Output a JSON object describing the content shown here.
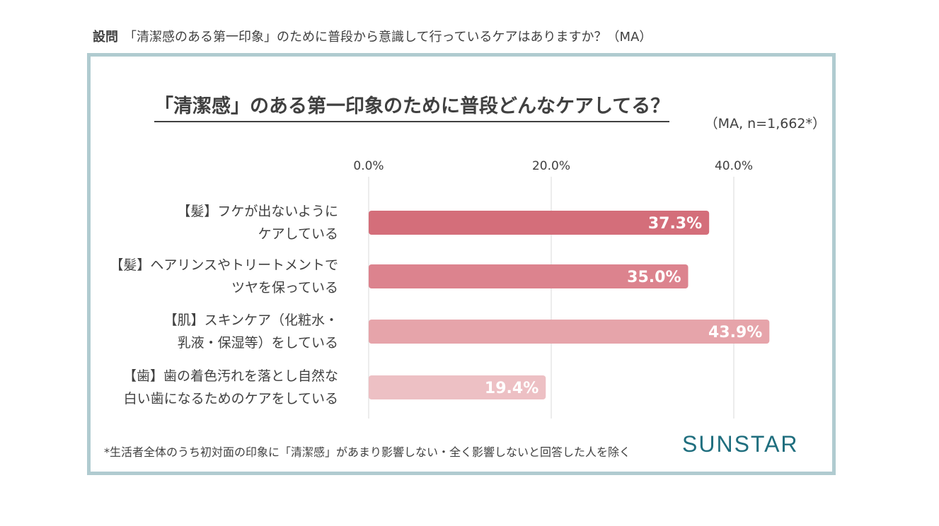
{
  "question": {
    "label": "設問",
    "text": "「清潔感のある第一印象」のために普段から意識して行っているケアはありますか？（MA）"
  },
  "chart_data": {
    "type": "bar",
    "orientation": "horizontal",
    "title": "「清潔感」のある第一印象のために普段どんなケアしてる？",
    "subtitle": "（MA, n=1,662*）",
    "categories": [
      [
        "【髪】フケが出ないように",
        "ケアしている"
      ],
      [
        "【髪】ヘアリンスやトリートメントで",
        "ツヤを保っている"
      ],
      [
        "【肌】スキンケア（化粧水・",
        "乳液・保湿等）をしている"
      ],
      [
        "【歯】歯の着色汚れを落とし自然な",
        "白い歯になるためのケアをしている"
      ]
    ],
    "values": [
      37.3,
      35.0,
      43.9,
      19.4
    ],
    "data_labels": [
      "37.3%",
      "35.0%",
      "43.9%",
      "19.4%"
    ],
    "bar_colors": [
      "#d46e7a",
      "#dc838e",
      "#e6a4aa",
      "#edc0c4"
    ],
    "xlim": [
      0,
      48
    ],
    "ticks": [
      0,
      20,
      40
    ],
    "tick_labels": [
      "0.0%",
      "20.0%",
      "40.0%"
    ],
    "grid": true,
    "xlabel": "",
    "ylabel": ""
  },
  "footnote": "*生活者全体のうち初対面の印象に「清潔感」があまり影響しない・全く影響しないと回答した人を除く",
  "logo": "SUNSTAR",
  "colors": {
    "frame": "#b0cbd0",
    "text": "#404040",
    "grid": "#d9d9d9",
    "logo": "#1f6e7e"
  }
}
